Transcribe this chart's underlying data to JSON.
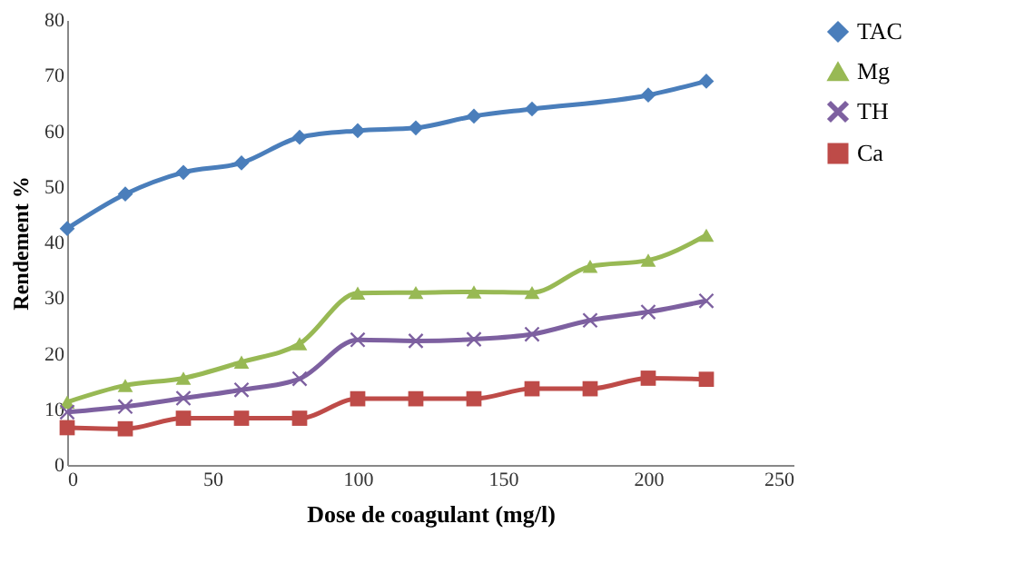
{
  "chart_data": {
    "type": "line",
    "xlabel": "Dose de coagulant (mg/l)",
    "ylabel": "Rendement %",
    "x": [
      0,
      20,
      40,
      60,
      80,
      100,
      120,
      140,
      160,
      180,
      200,
      220
    ],
    "series": [
      {
        "name": "TAC",
        "color": "#4a7ebb",
        "marker": "diamond",
        "x": [
          0,
          20,
          40,
          60,
          80,
          100,
          120,
          140,
          160,
          200,
          220
        ],
        "values": [
          42.5,
          48.7,
          52.6,
          54.3,
          58.9,
          60.1,
          60.6,
          62.7,
          64,
          66.5,
          69
        ]
      },
      {
        "name": "Mg",
        "color": "#98b954",
        "marker": "triangle",
        "values": [
          11.3,
          14.3,
          15.6,
          18.5,
          21.8,
          30.9,
          31,
          31.1,
          31,
          35.7,
          36.8,
          41.3
        ]
      },
      {
        "name": "TH",
        "color": "#7d60a0",
        "marker": "cross",
        "values": [
          9.5,
          10.5,
          12,
          13.5,
          15.5,
          22.5,
          22.3,
          22.6,
          23.5,
          26,
          27.5,
          29.5
        ]
      },
      {
        "name": "Ca",
        "color": "#be4b48",
        "marker": "square",
        "values": [
          6.7,
          6.5,
          8.4,
          8.4,
          8.4,
          11.9,
          11.9,
          11.9,
          13.7,
          13.7,
          15.6,
          15.4
        ]
      }
    ],
    "xlim": [
      0,
      250
    ],
    "xticks": [
      0,
      50,
      100,
      150,
      200,
      250
    ],
    "ylim": [
      0,
      80
    ],
    "yticks": [
      0,
      10,
      20,
      30,
      40,
      50,
      60,
      70,
      80
    ],
    "grid": false,
    "legend": "right",
    "line_style": "solid"
  }
}
